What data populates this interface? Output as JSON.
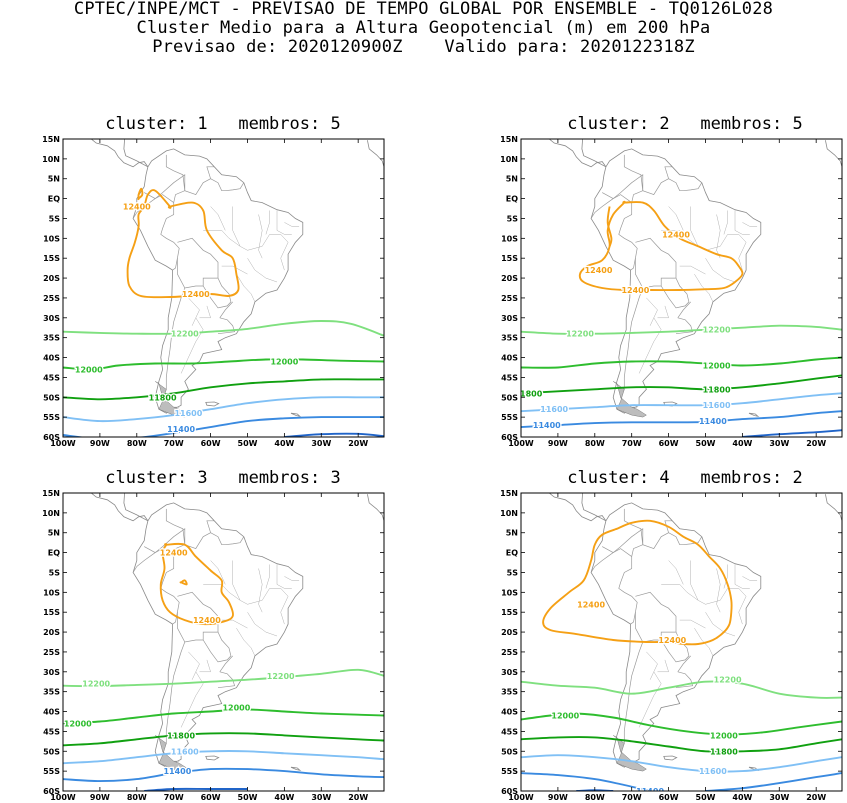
{
  "header": {
    "line1": "CPTEC/INPE/MCT - PREVISAO DE TEMPO GLOBAL POR ENSEMBLE - TQ0126L028",
    "line2": "Cluster Medio para a Altura Geopotencial (m) em 200 hPa",
    "line3": "Previsao de: 2020120900Z    Valido para: 2020122318Z"
  },
  "axes": {
    "lat_labels": [
      "15N",
      "10N",
      "5N",
      "EQ",
      "5S",
      "10S",
      "15S",
      "20S",
      "25S",
      "30S",
      "35S",
      "40S",
      "45S",
      "50S",
      "55S",
      "60S"
    ],
    "lon_labels": [
      "100W",
      "90W",
      "80W",
      "70W",
      "60W",
      "50W",
      "40W",
      "30W",
      "20W"
    ],
    "lat_range": [
      -60,
      15
    ],
    "lon_range": [
      -100,
      -13
    ]
  },
  "contour_colors": {
    "12400": "#f5a015",
    "12200": "#7fe07f",
    "12000": "#2ebd2e",
    "11800": "#10a010",
    "11600": "#80c0f5",
    "11400": "#3a8ae0",
    "lowest": "#2064c8"
  },
  "panels": [
    {
      "title": "cluster: 1   membros: 5",
      "labels": [
        {
          "text": "12400",
          "lon": -80,
          "lat": -2
        },
        {
          "text": "12400",
          "lon": -64,
          "lat": -24
        },
        {
          "text": "12200",
          "lon": -67,
          "lat": -34
        },
        {
          "text": "12000",
          "lon": -93,
          "lat": -43
        },
        {
          "text": "12000",
          "lon": -40,
          "lat": -41
        },
        {
          "text": "11800",
          "lon": -73,
          "lat": -50
        },
        {
          "text": "11600",
          "lon": -66,
          "lat": -54
        },
        {
          "text": "11400",
          "lon": -68,
          "lat": -58
        }
      ]
    },
    {
      "title": "cluster: 2   membros: 5",
      "labels": [
        {
          "text": "12400",
          "lon": -58,
          "lat": -9
        },
        {
          "text": "12400",
          "lon": -79,
          "lat": -18
        },
        {
          "text": "12400",
          "lon": -69,
          "lat": -23
        },
        {
          "text": "12200",
          "lon": -84,
          "lat": -34
        },
        {
          "text": "12200",
          "lon": -47,
          "lat": -33
        },
        {
          "text": "12000",
          "lon": -47,
          "lat": -42
        },
        {
          "text": "11800",
          "lon": -98,
          "lat": -49
        },
        {
          "text": "11800",
          "lon": -47,
          "lat": -48
        },
        {
          "text": "11600",
          "lon": -91,
          "lat": -53
        },
        {
          "text": "11600",
          "lon": -47,
          "lat": -52
        },
        {
          "text": "11400",
          "lon": -93,
          "lat": -57
        },
        {
          "text": "11400",
          "lon": -48,
          "lat": -56
        }
      ]
    },
    {
      "title": "cluster: 3   membros: 3",
      "labels": [
        {
          "text": "12400",
          "lon": -70,
          "lat": 0
        },
        {
          "text": "12400",
          "lon": -61,
          "lat": -17
        },
        {
          "text": "12200",
          "lon": -91,
          "lat": -33
        },
        {
          "text": "12200",
          "lon": -41,
          "lat": -31
        },
        {
          "text": "12000",
          "lon": -96,
          "lat": -43
        },
        {
          "text": "12000",
          "lon": -53,
          "lat": -39
        },
        {
          "text": "11800",
          "lon": -68,
          "lat": -46
        },
        {
          "text": "11600",
          "lon": -67,
          "lat": -50
        },
        {
          "text": "11400",
          "lon": -69,
          "lat": -55
        }
      ]
    },
    {
      "title": "cluster: 4   membros: 2",
      "labels": [
        {
          "text": "12400",
          "lon": -81,
          "lat": -13
        },
        {
          "text": "12400",
          "lon": -59,
          "lat": -22
        },
        {
          "text": "12200",
          "lon": -44,
          "lat": -32
        },
        {
          "text": "12000",
          "lon": -88,
          "lat": -41
        },
        {
          "text": "12000",
          "lon": -45,
          "lat": -46
        },
        {
          "text": "11800",
          "lon": -45,
          "lat": -50
        },
        {
          "text": "11600",
          "lon": -48,
          "lat": -55
        },
        {
          "text": "11400",
          "lon": -65,
          "lat": -60
        }
      ]
    }
  ]
}
